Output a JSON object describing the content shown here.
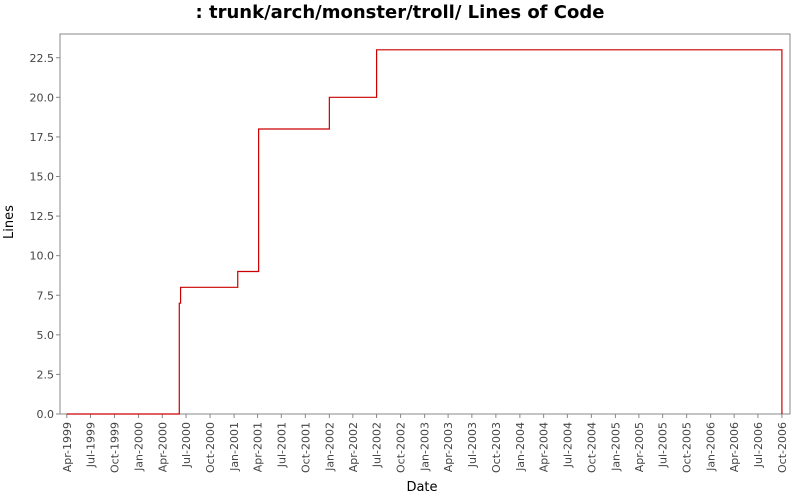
{
  "chart_data": {
    "type": "line",
    "title": ": trunk/arch/monster/troll/ Lines of Code",
    "xlabel": "Date",
    "ylabel": "Lines",
    "ylim": [
      0,
      24
    ],
    "xlim": [
      "1999-03-06",
      "2006-11-01"
    ],
    "y_ticks": [
      "0.0",
      "2.5",
      "5.0",
      "7.5",
      "10.0",
      "12.5",
      "15.0",
      "17.5",
      "20.0",
      "22.5"
    ],
    "x_ticks": [
      "Apr-1999",
      "Jul-1999",
      "Oct-1999",
      "Jan-2000",
      "Apr-2000",
      "Jul-2000",
      "Oct-2000",
      "Jan-2001",
      "Apr-2001",
      "Jul-2001",
      "Oct-2001",
      "Jan-2002",
      "Apr-2002",
      "Jul-2002",
      "Oct-2002",
      "Jan-2003",
      "Apr-2003",
      "Jul-2003",
      "Oct-2003",
      "Jan-2004",
      "Apr-2004",
      "Jul-2004",
      "Oct-2004",
      "Jan-2005",
      "Apr-2005",
      "Jul-2005",
      "Oct-2005",
      "Jan-2006",
      "Apr-2006",
      "Jul-2006",
      "Oct-2006"
    ],
    "grid": false,
    "step": true,
    "series": [
      {
        "color": "#cc0000",
        "points": [
          {
            "x": "1999-04-01",
            "y": 0
          },
          {
            "x": "2000-06-05",
            "y": 0
          },
          {
            "x": "2000-06-05",
            "y": 7
          },
          {
            "x": "2000-06-10",
            "y": 8
          },
          {
            "x": "2001-01-15",
            "y": 9
          },
          {
            "x": "2001-04-05",
            "y": 18
          },
          {
            "x": "2002-01-01",
            "y": 20
          },
          {
            "x": "2002-07-01",
            "y": 23
          },
          {
            "x": "2006-10-01",
            "y": 0
          }
        ]
      }
    ]
  }
}
